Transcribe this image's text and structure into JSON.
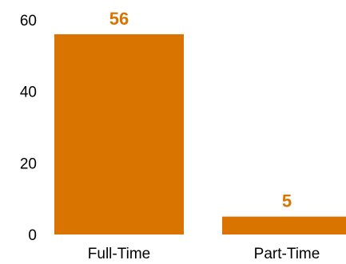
{
  "chart_data": {
    "type": "bar",
    "categories": [
      "Full-Time",
      "Part-Time"
    ],
    "values": [
      56,
      5
    ],
    "data_labels": [
      "56",
      "5"
    ],
    "y_ticks": [
      "0",
      "20",
      "40",
      "60"
    ],
    "y_tick_values": [
      0,
      20,
      40,
      60
    ],
    "ylim": [
      0,
      60
    ],
    "grid": false,
    "legend": "none",
    "bar_color": "#d97400",
    "label_color": "#d97400",
    "title": "",
    "xlabel": "",
    "ylabel": ""
  }
}
